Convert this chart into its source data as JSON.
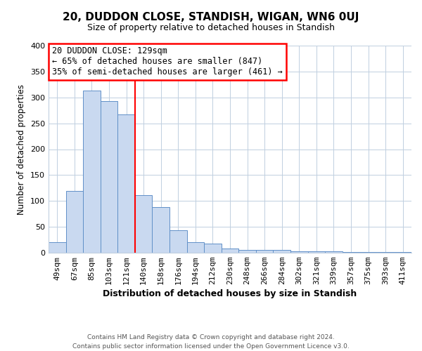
{
  "title": "20, DUDDON CLOSE, STANDISH, WIGAN, WN6 0UJ",
  "subtitle": "Size of property relative to detached houses in Standish",
  "xlabel": "Distribution of detached houses by size in Standish",
  "ylabel": "Number of detached properties",
  "bar_labels": [
    "49sqm",
    "67sqm",
    "85sqm",
    "103sqm",
    "121sqm",
    "140sqm",
    "158sqm",
    "176sqm",
    "194sqm",
    "212sqm",
    "230sqm",
    "248sqm",
    "266sqm",
    "284sqm",
    "302sqm",
    "321sqm",
    "339sqm",
    "357sqm",
    "375sqm",
    "393sqm",
    "411sqm"
  ],
  "bar_values": [
    20,
    120,
    313,
    293,
    267,
    111,
    88,
    44,
    21,
    17,
    8,
    5,
    5,
    5,
    3,
    3,
    3,
    2,
    1,
    1,
    2
  ],
  "bar_color": "#c9d9f0",
  "bar_edge_color": "#6090c8",
  "vline_x": 4.5,
  "vline_color": "red",
  "annotation_title": "20 DUDDON CLOSE: 129sqm",
  "annotation_line1": "← 65% of detached houses are smaller (847)",
  "annotation_line2": "35% of semi-detached houses are larger (461) →",
  "annotation_box_color": "#ffffff",
  "annotation_box_edge_color": "red",
  "ylim": [
    0,
    400
  ],
  "yticks": [
    0,
    50,
    100,
    150,
    200,
    250,
    300,
    350,
    400
  ],
  "footer_line1": "Contains HM Land Registry data © Crown copyright and database right 2024.",
  "footer_line2": "Contains public sector information licensed under the Open Government Licence v3.0.",
  "background_color": "#ffffff",
  "grid_color": "#c0cfe0",
  "title_fontsize": 11,
  "subtitle_fontsize": 9,
  "xlabel_fontsize": 9,
  "ylabel_fontsize": 8.5,
  "tick_fontsize": 8,
  "footer_fontsize": 6.5,
  "annotation_fontsize": 8.5
}
